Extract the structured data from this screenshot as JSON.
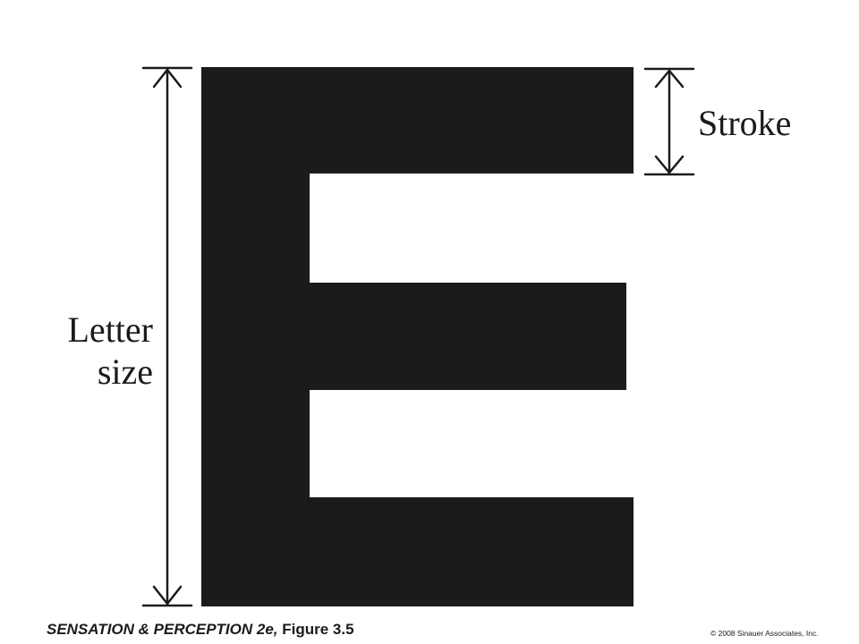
{
  "colors": {
    "ink": "#1c1a1b",
    "background": "#ffffff"
  },
  "labels": {
    "stroke": "Stroke",
    "letter_size_line1": "Letter",
    "letter_size_line2": "size"
  },
  "caption": {
    "book": "SENSATION & PERCEPTION 2e,",
    "figure": "Figure 3.5"
  },
  "copyright": "© 2008 Sinauer Associates, Inc.",
  "icons": {
    "letter": "letter-e-shape",
    "size_arrow": "double-headed-arrow-vertical",
    "stroke_arrow": "double-headed-arrow-vertical"
  }
}
